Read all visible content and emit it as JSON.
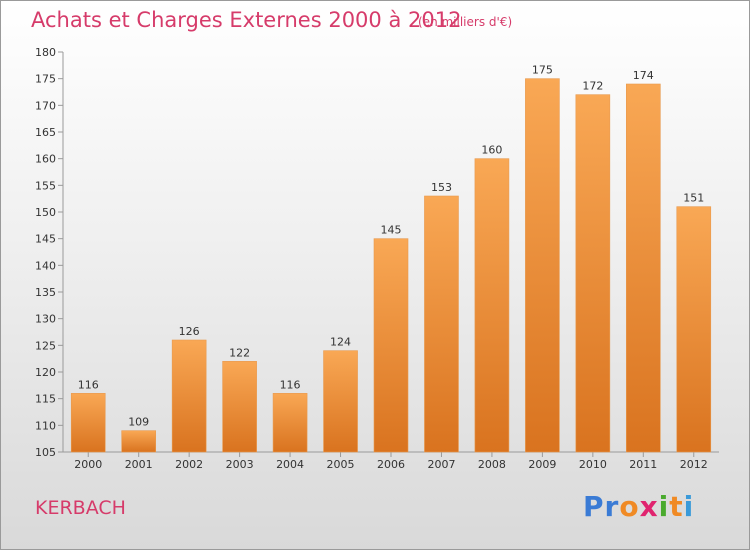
{
  "title": "Achats et Charges Externes 2000 à 2012",
  "subtitle": "(en milliers d'€)",
  "commune": "KERBACH",
  "logo": {
    "letters": [
      "P",
      "r",
      "o",
      "x",
      "i",
      "t",
      "i"
    ],
    "colors": [
      "#3a7bd5",
      "#3a7bd5",
      "#f08a24",
      "#e0246f",
      "#4aaa2e",
      "#f08a24",
      "#3a9ad9"
    ]
  },
  "colors": {
    "bar_top": "#f9a855",
    "bar_bottom": "#d9731f",
    "text": "#d63b6a",
    "grid": "#9a9a9a"
  },
  "chart_data": {
    "type": "bar",
    "title": "Achats et Charges Externes 2000 à 2012",
    "ylabel": "",
    "xlabel": "",
    "categories": [
      "2000",
      "2001",
      "2002",
      "2003",
      "2004",
      "2005",
      "2006",
      "2007",
      "2008",
      "2009",
      "2010",
      "2011",
      "2012"
    ],
    "values": [
      116,
      109,
      126,
      122,
      116,
      124,
      145,
      153,
      160,
      175,
      172,
      174,
      151
    ],
    "ylim": [
      105,
      180
    ],
    "yticks": [
      105,
      110,
      115,
      120,
      125,
      130,
      135,
      140,
      145,
      150,
      155,
      160,
      165,
      170,
      175,
      180
    ],
    "grid": false,
    "legend": "none"
  }
}
